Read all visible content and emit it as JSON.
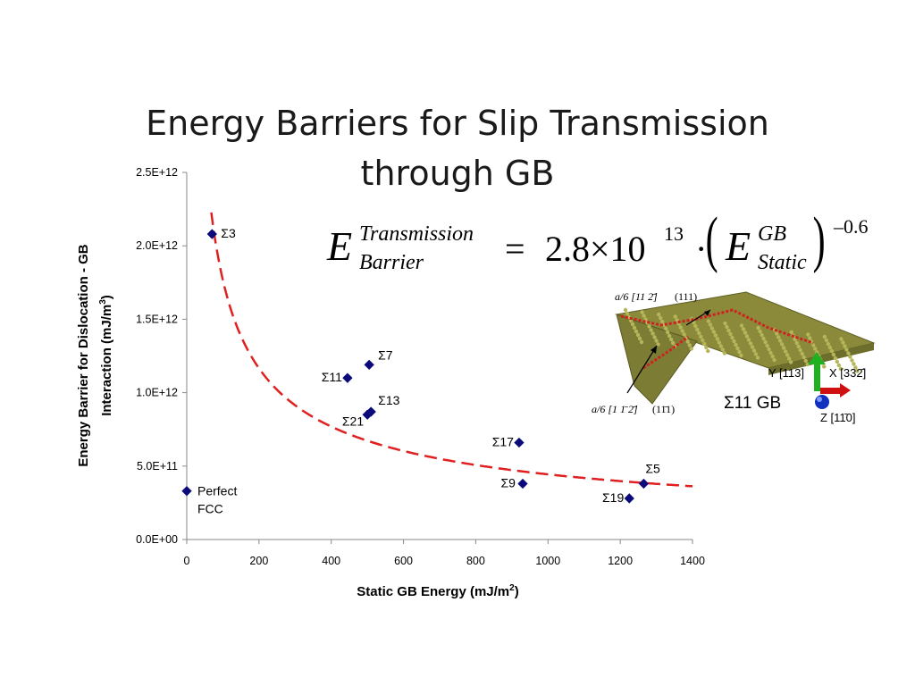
{
  "slide": {
    "title_line1": "Energy Barriers for Slip Transmission",
    "title_line2": "through GB"
  },
  "formula": {
    "lhs_symbol": "E",
    "lhs_sup": "Transmission",
    "lhs_sub": "Barrier",
    "equals": "=",
    "coefficient": "2.8×10",
    "exponent": "13",
    "dot": "·",
    "rhs_symbol": "E",
    "rhs_sup": "GB",
    "rhs_sub": "Static",
    "power": "–0.6"
  },
  "inset": {
    "caption": "Σ11 GB",
    "top_plane_label": "(111)",
    "bottom_plane_label": "(11̄1)",
    "axis_y": "Y [113]",
    "axis_x": "X [332̄]",
    "axis_z": "Z [11̄0]",
    "colors": {
      "atoms": "#8a8a3a",
      "highlight": "#d02020",
      "axis_x": "#d01010",
      "axis_y": "#20b020",
      "axis_z": "#1030c0"
    }
  },
  "chart_data": {
    "type": "scatter",
    "title": "",
    "xlabel": "Static GB Energy (mJ/m",
    "xlabel_sup": "2",
    "xlabel_end": ")",
    "ylabel_line1": "Energy Barrier for Dislocation - GB",
    "ylabel_line2": "Interaction (mJ/m",
    "ylabel_sup": "3",
    "ylabel_end": ")",
    "xlim": [
      0,
      1400
    ],
    "ylim": [
      0,
      2500000000000.0
    ],
    "x_ticks": [
      0,
      200,
      400,
      600,
      800,
      1000,
      1200,
      1400
    ],
    "y_ticks": [
      0,
      500000000000.0,
      1000000000000.0,
      1500000000000.0,
      2000000000000.0,
      2500000000000.0
    ],
    "y_tick_labels": [
      "0.0E+00",
      "5.0E+11",
      "1.0E+12",
      "1.5E+12",
      "2.0E+12",
      "2.5E+12"
    ],
    "grid": false,
    "marker_color": "#0a0a7a",
    "points": [
      {
        "label": "Σ3",
        "x": 70,
        "y": 2080000000000.0
      },
      {
        "label": "Σ7",
        "x": 505,
        "y": 1190000000000.0
      },
      {
        "label": "Σ11",
        "x": 445,
        "y": 1100000000000.0
      },
      {
        "label": "Σ13",
        "x": 510,
        "y": 870000000000.0
      },
      {
        "label": "Σ21",
        "x": 500,
        "y": 850000000000.0
      },
      {
        "label": "Σ17",
        "x": 920,
        "y": 660000000000.0
      },
      {
        "label": "Σ5",
        "x": 1265,
        "y": 380000000000.0
      },
      {
        "label": "Σ9",
        "x": 930,
        "y": 380000000000.0
      },
      {
        "label": "Σ19",
        "x": 1225,
        "y": 280000000000.0
      },
      {
        "label": "Perfect FCC",
        "x": 0,
        "y": 330000000000.0
      }
    ],
    "fit": {
      "coefficient": 28000000000000.0,
      "exponent": -0.6,
      "x_range": [
        68,
        1400
      ],
      "color": "#e02020",
      "style": "dashed"
    }
  }
}
